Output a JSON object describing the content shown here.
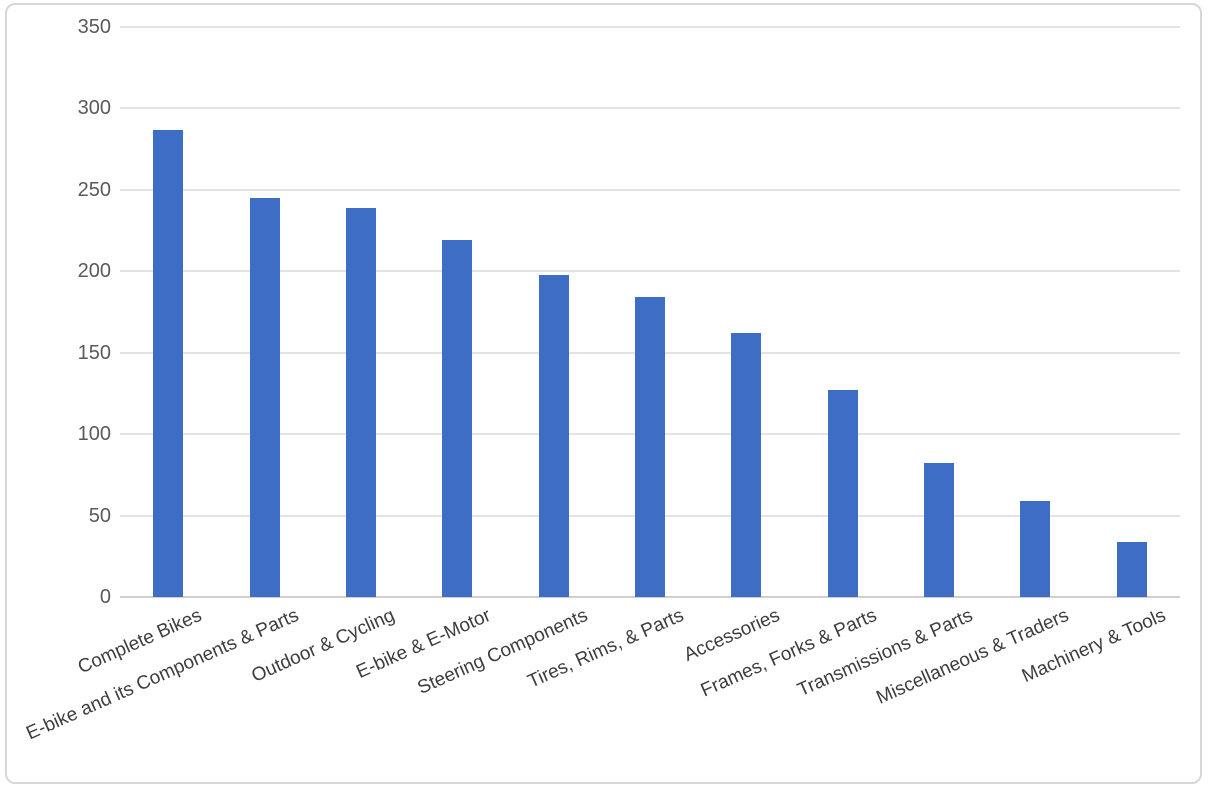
{
  "chart_data": {
    "type": "bar",
    "title": "",
    "xlabel": "",
    "ylabel": "",
    "categories": [
      "Complete Bikes",
      "E-bike and its Components & Parts",
      "Outdoor & Cycling",
      "E-bike & E-Motor",
      "Steering Components",
      "Tires, Rims, & Parts",
      "Accessories",
      "Frames, Forks & Parts",
      "Transmissions & Parts",
      "Miscellaneous & Traders",
      "Machinery & Tools"
    ],
    "values": [
      287,
      245,
      239,
      219,
      198,
      184,
      162,
      127,
      82,
      59,
      34
    ],
    "ylim": [
      0,
      350
    ],
    "yticks": [
      0,
      50,
      100,
      150,
      200,
      250,
      300,
      350
    ],
    "grid": true,
    "legend": false,
    "category_label_rotation_deg": -24,
    "colors": {
      "bar": "#3e6dc5",
      "gridline": "#e3e3e3",
      "axis_line": "#cfcfcf",
      "y_tick_text": "#5a5a5a",
      "category_text": "#3d3d3d",
      "frame_border": "#d6d6d6",
      "background": "#ffffff"
    }
  }
}
